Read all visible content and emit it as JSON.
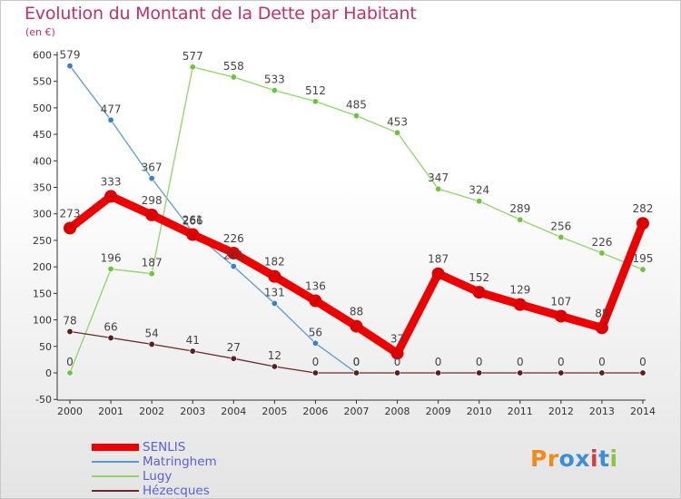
{
  "title": "Evolution du Montant de la Dette par Habitant",
  "subtitle": "(en €)",
  "logo": {
    "text": "Proxiti",
    "colors": [
      "#f08a1a",
      "#f08a1a",
      "#3b8fd9",
      "#3b8fd9",
      "#d93b3b",
      "#3b8fd9",
      "#8cc63f"
    ]
  },
  "chart_data": {
    "type": "line",
    "x": [
      "2000",
      "2001",
      "2002",
      "2003",
      "2004",
      "2005",
      "2006",
      "2007",
      "2008",
      "2009",
      "2010",
      "2011",
      "2012",
      "2013",
      "2014"
    ],
    "ylim": [
      -50,
      600
    ],
    "yticks": [
      -50,
      0,
      50,
      100,
      150,
      200,
      250,
      300,
      350,
      400,
      450,
      500,
      550,
      600
    ],
    "grid": false,
    "legend_position": "bottom-left",
    "series": [
      {
        "name": "SENLIS",
        "color": "#ee0000",
        "marker": "#dd0000",
        "thick": true,
        "values": [
          273,
          333,
          298,
          261,
          226,
          182,
          136,
          88,
          37,
          187,
          152,
          129,
          107,
          85,
          282
        ],
        "labels": [
          "273",
          "333",
          "298",
          "261",
          "226",
          "182",
          "136",
          "88",
          "37",
          "187",
          "152",
          "129",
          "107",
          "85",
          "282"
        ]
      },
      {
        "name": "Matringhem",
        "color": "#5b9bd5",
        "marker": "#3a80c8",
        "thick": false,
        "values": [
          579,
          477,
          367,
          266,
          201,
          131,
          56,
          0,
          null,
          null,
          null,
          null,
          null,
          null,
          null
        ],
        "labels": [
          "579",
          "477",
          "367",
          "266",
          "201",
          "131",
          "56",
          "0",
          "",
          "",
          "",
          "",
          "",
          "",
          ""
        ]
      },
      {
        "name": "Lugy",
        "color": "#8fd46a",
        "marker": "#6cc43c",
        "thick": false,
        "values": [
          0,
          196,
          187,
          577,
          558,
          533,
          512,
          485,
          453,
          347,
          324,
          289,
          256,
          226,
          195
        ],
        "labels": [
          "0",
          "196",
          "187",
          "577",
          "558",
          "533",
          "512",
          "485",
          "453",
          "347",
          "324",
          "289",
          "256",
          "226",
          "195"
        ]
      },
      {
        "name": "Hézecques",
        "color": "#6b2b2b",
        "marker": "#5a1e1e",
        "thick": false,
        "values": [
          78,
          66,
          54,
          41,
          27,
          12,
          0,
          0,
          0,
          0,
          0,
          0,
          0,
          0,
          0
        ],
        "labels": [
          "78",
          "66",
          "54",
          "41",
          "27",
          "12",
          "0",
          "0",
          "0",
          "0",
          "0",
          "0",
          "0",
          "0",
          "0"
        ]
      }
    ]
  }
}
